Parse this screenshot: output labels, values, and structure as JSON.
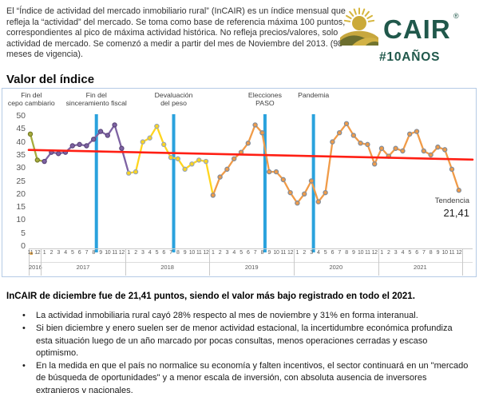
{
  "header": {
    "description": "El “Índice de actividad del mercado inmobiliario rural” (InCAIR) es un índice mensual que refleja la “actividad” del mercado. Se toma como base de referencia máxima 100 puntos, correspondientes al pico de máxima actividad histórica. No refleja precios/valores, solo actividad de mercado. Se comenzó a medir a partir del mes de Noviembre del 2013. (98 meses de vigencia).",
    "logo": {
      "brand": "CAIR",
      "registered": "®",
      "hashtag": "#10AÑOS",
      "brand_color": "#20584b"
    }
  },
  "section_title": "Valor del índice",
  "chart_data": {
    "type": "line",
    "title": "Valor del índice",
    "ylim": [
      0,
      50
    ],
    "ytick_step": 5,
    "grid": false,
    "x_years": [
      {
        "year": "2016",
        "months": [
          "11",
          "12"
        ]
      },
      {
        "year": "2017",
        "months": [
          "1",
          "2",
          "3",
          "4",
          "5",
          "6",
          "7",
          "8",
          "9",
          "10",
          "11",
          "12"
        ]
      },
      {
        "year": "2018",
        "months": [
          "1",
          "2",
          "3",
          "4",
          "5",
          "6",
          "7",
          "8",
          "9",
          "10",
          "11",
          "12"
        ]
      },
      {
        "year": "2019",
        "months": [
          "1",
          "2",
          "3",
          "4",
          "5",
          "6",
          "7",
          "8",
          "9",
          "10",
          "11",
          "12"
        ]
      },
      {
        "year": "2020",
        "months": [
          "1",
          "2",
          "3",
          "4",
          "5",
          "6",
          "7",
          "8",
          "9",
          "10",
          "11",
          "12"
        ]
      },
      {
        "year": "2021",
        "months": [
          "1",
          "2",
          "3",
          "4",
          "5",
          "6",
          "7",
          "8",
          "9",
          "10",
          "11",
          "12"
        ]
      }
    ],
    "values": [
      43,
      33,
      32.5,
      36,
      35.5,
      36,
      38.5,
      39,
      38.5,
      41,
      44,
      42.5,
      46.5,
      37.5,
      28,
      28.5,
      40,
      41.5,
      46,
      39,
      34,
      33.5,
      29.5,
      31.5,
      33,
      32.5,
      19.5,
      26.5,
      29.5,
      33.5,
      36,
      39.5,
      46.5,
      43.5,
      28.5,
      28.5,
      25.5,
      20.5,
      16.5,
      20,
      25,
      17,
      20.5,
      40,
      43.5,
      47,
      42.5,
      39.5,
      39,
      31.5,
      37.5,
      34.5,
      37.5,
      36.5,
      43,
      44,
      36.5,
      35,
      38,
      37,
      29.5,
      21.41
    ],
    "segments": [
      {
        "year": "2016",
        "start": 0,
        "count": 2,
        "color": "#a6ac3c",
        "marker_stroke": "#757a27"
      },
      {
        "year": "2017",
        "start": 2,
        "count": 12,
        "color": "#7e63a3",
        "marker_stroke": "#5a4478"
      },
      {
        "year": "2018",
        "start": 14,
        "count": 12,
        "color": "#ffd51e",
        "marker_stroke": "#98a5b4"
      },
      {
        "year": "2019",
        "start": 26,
        "count": 12,
        "color": "#f09b48",
        "marker_stroke": "#808b99"
      },
      {
        "year": "2020",
        "start": 38,
        "count": 12,
        "color": "#f09b48",
        "marker_stroke": "#808b99"
      },
      {
        "year": "2021",
        "start": 50,
        "count": 12,
        "color": "#f09b48",
        "marker_stroke": "#808b99"
      }
    ],
    "events": [
      {
        "name": "fin-cepo",
        "lines": [
          "Fin del",
          "cepo cambiario"
        ],
        "index": 0.15,
        "line": false
      },
      {
        "name": "fin-sinceramiento",
        "lines": [
          "Fin del",
          "sinceramiento fiscal"
        ],
        "index": 9.4,
        "line": true
      },
      {
        "name": "devaluacion-peso",
        "lines": [
          "Devaluación",
          "del peso"
        ],
        "index": 20.4,
        "line": true
      },
      {
        "name": "elecciones-paso",
        "lines": [
          "Elecciones",
          "PASO"
        ],
        "index": 33.4,
        "line": true
      },
      {
        "name": "pandemia",
        "lines": [
          "Pandemia"
        ],
        "index": 40.3,
        "line": true
      }
    ],
    "event_line_color": "#2aa2dd",
    "trend": {
      "label": "Tendencia",
      "value_label": "21,41",
      "start": 36.9,
      "end": 33.2,
      "color": "#ff1f14"
    }
  },
  "footer": {
    "headline": "InCAIR de diciembre fue de 21,41 puntos, siendo el valor más bajo registrado en todo el 2021.",
    "bullets": [
      "La actividad inmobiliaria rural cayó 28% respecto al mes de noviembre y 31% en forma interanual.",
      "Si bien diciembre y enero suelen ser de menor actividad estacional, la incertidumbre económica profundiza esta situación luego de un año marcado por pocas consultas, menos operaciones cerradas y escaso optimismo.",
      "En la medida en que el país no normalice su economía y falten incentivos, el sector continuará en un \"mercado de búsqueda de oportunidades\" y a menor escala de inversión, con absoluta ausencia de inversores extranjeros y nacionales."
    ],
    "bullet_glyph": "•"
  }
}
